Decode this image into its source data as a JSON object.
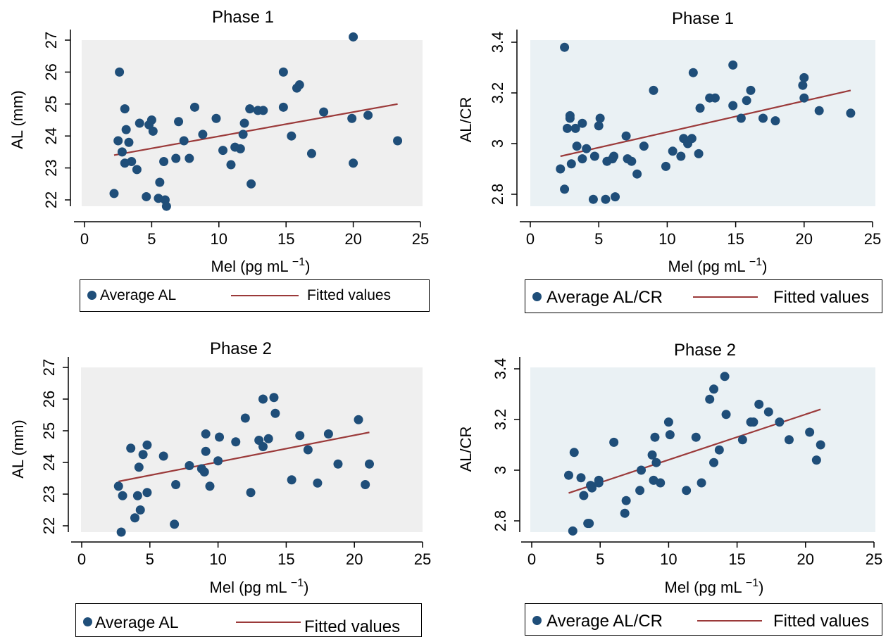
{
  "colors": {
    "point": "#1f4e79",
    "fit": "#9b3a3a",
    "bg1": "#efefef",
    "bg2": "#eaf1f4"
  },
  "chart_data": [
    {
      "type": "scatter",
      "title": "Phase 1",
      "xlabel": "Mel (pg mL",
      "xlabel_sup": "−1",
      "xlabel_close": ")",
      "ylabel": "AL (mm)",
      "xlim": [
        0,
        25
      ],
      "ylim": [
        22,
        27
      ],
      "xticks": [
        0,
        5,
        10,
        15,
        20,
        25
      ],
      "yticks": [
        "22",
        "23",
        "24",
        "25",
        "26",
        "27"
      ],
      "legend": [
        "Average AL",
        "Fitted values"
      ],
      "series": [
        {
          "name": "Average AL",
          "points": [
            [
              2.2,
              22.2
            ],
            [
              2.5,
              23.85
            ],
            [
              2.6,
              26.0
            ],
            [
              2.8,
              23.5
            ],
            [
              3.0,
              24.85
            ],
            [
              3.0,
              23.15
            ],
            [
              3.1,
              24.2
            ],
            [
              3.3,
              23.8
            ],
            [
              3.5,
              23.2
            ],
            [
              3.9,
              22.95
            ],
            [
              4.1,
              24.4
            ],
            [
              4.6,
              22.1
            ],
            [
              4.8,
              24.35
            ],
            [
              5.0,
              24.5
            ],
            [
              5.1,
              24.15
            ],
            [
              5.5,
              22.05
            ],
            [
              5.6,
              22.55
            ],
            [
              5.9,
              23.2
            ],
            [
              6.0,
              22.0
            ],
            [
              6.1,
              21.8
            ],
            [
              6.8,
              23.3
            ],
            [
              7.0,
              24.45
            ],
            [
              7.4,
              23.85
            ],
            [
              7.8,
              23.3
            ],
            [
              8.2,
              24.9
            ],
            [
              8.8,
              24.05
            ],
            [
              9.8,
              24.55
            ],
            [
              10.3,
              23.55
            ],
            [
              10.9,
              23.1
            ],
            [
              11.2,
              23.65
            ],
            [
              11.6,
              23.6
            ],
            [
              11.8,
              24.05
            ],
            [
              11.9,
              24.4
            ],
            [
              12.3,
              24.85
            ],
            [
              12.4,
              22.5
            ],
            [
              12.9,
              24.8
            ],
            [
              13.3,
              24.8
            ],
            [
              14.8,
              26.0
            ],
            [
              14.8,
              24.9
            ],
            [
              15.4,
              24.0
            ],
            [
              15.8,
              25.5
            ],
            [
              16.0,
              25.6
            ],
            [
              16.9,
              23.45
            ],
            [
              17.8,
              24.75
            ],
            [
              19.9,
              24.55
            ],
            [
              20.0,
              23.15
            ],
            [
              20.0,
              27.1
            ],
            [
              21.1,
              24.65
            ],
            [
              23.3,
              23.85
            ]
          ]
        },
        {
          "name": "Fitted values",
          "line": [
            [
              2.2,
              23.4
            ],
            [
              23.3,
              25.0
            ]
          ]
        }
      ]
    },
    {
      "type": "scatter",
      "title": "Phase 1",
      "xlabel": "Mel (pg mL",
      "xlabel_sup": "−1",
      "xlabel_close": ")",
      "ylabel": "AL/CR",
      "xlim": [
        0,
        25
      ],
      "ylim": [
        2.8,
        3.4
      ],
      "xticks": [
        0,
        5,
        10,
        15,
        20,
        25
      ],
      "yticks": [
        "2.8",
        "3",
        "3.2",
        "3.4"
      ],
      "legend": [
        "Average AL/CR",
        "Fitted values"
      ],
      "series": [
        {
          "name": "Average AL/CR",
          "points": [
            [
              2.2,
              2.9
            ],
            [
              2.5,
              3.38
            ],
            [
              2.5,
              2.82
            ],
            [
              2.7,
              3.06
            ],
            [
              2.9,
              3.1
            ],
            [
              2.9,
              3.11
            ],
            [
              3.0,
              2.92
            ],
            [
              3.3,
              3.06
            ],
            [
              3.4,
              2.99
            ],
            [
              3.8,
              3.08
            ],
            [
              3.8,
              2.94
            ],
            [
              4.1,
              2.98
            ],
            [
              4.6,
              2.78
            ],
            [
              4.7,
              2.95
            ],
            [
              5.0,
              3.07
            ],
            [
              5.1,
              3.1
            ],
            [
              5.5,
              2.78
            ],
            [
              5.6,
              2.93
            ],
            [
              6.0,
              2.94
            ],
            [
              6.1,
              2.95
            ],
            [
              6.2,
              2.79
            ],
            [
              7.0,
              3.03
            ],
            [
              7.1,
              2.94
            ],
            [
              7.4,
              2.93
            ],
            [
              7.8,
              2.88
            ],
            [
              8.3,
              2.99
            ],
            [
              9.0,
              3.21
            ],
            [
              9.9,
              2.91
            ],
            [
              10.4,
              2.97
            ],
            [
              11.0,
              2.95
            ],
            [
              11.2,
              3.02
            ],
            [
              11.5,
              3.0
            ],
            [
              11.8,
              3.02
            ],
            [
              11.9,
              3.28
            ],
            [
              12.3,
              2.96
            ],
            [
              12.4,
              3.14
            ],
            [
              13.1,
              3.18
            ],
            [
              13.5,
              3.18
            ],
            [
              14.8,
              3.31
            ],
            [
              14.8,
              3.15
            ],
            [
              15.4,
              3.1
            ],
            [
              15.8,
              3.17
            ],
            [
              16.1,
              3.21
            ],
            [
              17.0,
              3.1
            ],
            [
              17.9,
              3.09
            ],
            [
              19.9,
              3.23
            ],
            [
              20.0,
              3.26
            ],
            [
              20.0,
              3.18
            ],
            [
              21.1,
              3.13
            ],
            [
              23.4,
              3.12
            ]
          ]
        },
        {
          "name": "Fitted values",
          "line": [
            [
              2.2,
              2.95
            ],
            [
              23.4,
              3.21
            ]
          ]
        }
      ]
    },
    {
      "type": "scatter",
      "title": "Phase 2",
      "xlabel": "Mel (pg mL",
      "xlabel_sup": "−1",
      "xlabel_close": ")",
      "ylabel": "AL (mm)",
      "xlim": [
        0,
        25
      ],
      "ylim": [
        22,
        27
      ],
      "xticks": [
        0,
        5,
        10,
        15,
        20,
        25
      ],
      "yticks": [
        "22",
        "23",
        "24",
        "25",
        "26",
        "27"
      ],
      "legend": [
        "Average AL",
        "Fitted values"
      ],
      "series": [
        {
          "name": "Average AL",
          "points": [
            [
              2.7,
              23.25
            ],
            [
              2.9,
              21.8
            ],
            [
              3.0,
              22.95
            ],
            [
              3.6,
              24.45
            ],
            [
              3.9,
              22.25
            ],
            [
              4.1,
              22.95
            ],
            [
              4.2,
              23.85
            ],
            [
              4.3,
              22.5
            ],
            [
              4.5,
              24.25
            ],
            [
              4.8,
              23.05
            ],
            [
              4.8,
              24.55
            ],
            [
              6.0,
              24.2
            ],
            [
              6.8,
              22.05
            ],
            [
              6.9,
              23.3
            ],
            [
              7.9,
              23.9
            ],
            [
              8.8,
              23.8
            ],
            [
              9.0,
              23.7
            ],
            [
              9.1,
              24.35
            ],
            [
              9.1,
              24.9
            ],
            [
              9.4,
              23.25
            ],
            [
              10.0,
              24.05
            ],
            [
              10.1,
              24.8
            ],
            [
              11.3,
              24.65
            ],
            [
              12.0,
              25.4
            ],
            [
              12.4,
              23.05
            ],
            [
              13.0,
              24.7
            ],
            [
              13.3,
              24.5
            ],
            [
              13.3,
              26.0
            ],
            [
              13.7,
              24.75
            ],
            [
              14.1,
              26.05
            ],
            [
              14.2,
              25.55
            ],
            [
              15.4,
              23.45
            ],
            [
              16.0,
              24.85
            ],
            [
              16.6,
              24.4
            ],
            [
              17.3,
              23.35
            ],
            [
              18.1,
              24.9
            ],
            [
              18.8,
              23.95
            ],
            [
              20.3,
              25.35
            ],
            [
              20.8,
              23.3
            ],
            [
              21.1,
              23.95
            ]
          ]
        },
        {
          "name": "Fitted values",
          "line": [
            [
              2.7,
              23.4
            ],
            [
              21.1,
              24.95
            ]
          ]
        }
      ]
    },
    {
      "type": "scatter",
      "title": "Phase 2",
      "xlabel": "Mel (pg mL",
      "xlabel_sup": "−1",
      "xlabel_close": ")",
      "ylabel": "AL/CR",
      "xlim": [
        0,
        25
      ],
      "ylim": [
        2.8,
        3.4
      ],
      "xticks": [
        0,
        5,
        10,
        15,
        20,
        25
      ],
      "yticks": [
        "2.8",
        "3",
        "3.2",
        "3.4"
      ],
      "legend": [
        "Average AL/CR",
        "Fitted values"
      ],
      "series": [
        {
          "name": "Average AL/CR",
          "points": [
            [
              2.7,
              2.98
            ],
            [
              3.0,
              2.76
            ],
            [
              3.1,
              3.07
            ],
            [
              3.6,
              2.97
            ],
            [
              3.8,
              2.9
            ],
            [
              4.1,
              2.79
            ],
            [
              4.2,
              2.79
            ],
            [
              4.3,
              2.94
            ],
            [
              4.4,
              2.93
            ],
            [
              4.9,
              2.95
            ],
            [
              4.9,
              2.96
            ],
            [
              6.0,
              3.11
            ],
            [
              6.8,
              2.83
            ],
            [
              6.9,
              2.88
            ],
            [
              7.9,
              2.92
            ],
            [
              8.0,
              3.0
            ],
            [
              8.8,
              3.06
            ],
            [
              8.9,
              2.96
            ],
            [
              9.0,
              3.13
            ],
            [
              9.1,
              3.03
            ],
            [
              9.4,
              2.95
            ],
            [
              10.0,
              3.19
            ],
            [
              10.1,
              3.14
            ],
            [
              11.3,
              2.92
            ],
            [
              12.0,
              3.13
            ],
            [
              12.4,
              2.95
            ],
            [
              13.0,
              3.28
            ],
            [
              13.3,
              3.32
            ],
            [
              13.3,
              3.03
            ],
            [
              13.7,
              3.08
            ],
            [
              14.1,
              3.37
            ],
            [
              14.2,
              3.22
            ],
            [
              15.4,
              3.12
            ],
            [
              16.0,
              3.19
            ],
            [
              16.2,
              3.19
            ],
            [
              16.6,
              3.26
            ],
            [
              17.3,
              3.23
            ],
            [
              18.1,
              3.19
            ],
            [
              18.8,
              3.12
            ],
            [
              20.3,
              3.15
            ],
            [
              20.8,
              3.04
            ],
            [
              21.1,
              3.1
            ]
          ]
        },
        {
          "name": "Fitted values",
          "line": [
            [
              2.7,
              2.91
            ],
            [
              21.1,
              3.24
            ]
          ]
        }
      ]
    }
  ]
}
